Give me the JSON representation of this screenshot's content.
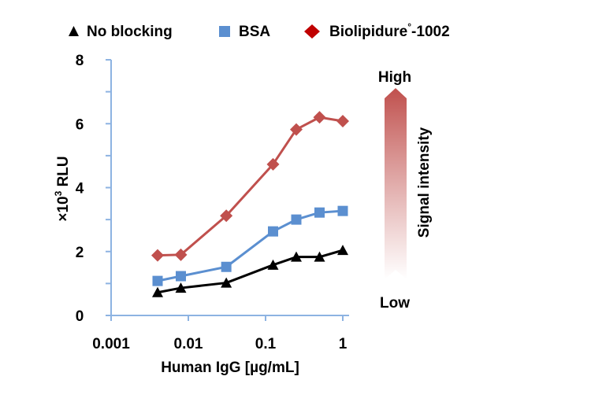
{
  "chart_data": {
    "type": "line",
    "xscale": "log",
    "xlim": [
      0.001,
      1
    ],
    "ylim": [
      0,
      8
    ],
    "x_ticks": [
      0.001,
      0.01,
      0.1,
      1
    ],
    "x_tick_labels": [
      "0.001",
      "0.01",
      "0.1",
      "1"
    ],
    "y_ticks": [
      0,
      2,
      4,
      6,
      8
    ],
    "y_tick_labels": [
      "0",
      "2",
      "4",
      "6",
      "8"
    ],
    "xlabel": "Human IgG [µg/mL]",
    "ylabel": "×10",
    "ylabel_sup": "3",
    "ylabel_tail": " RLU",
    "legend_position": "top",
    "grid": false,
    "series": [
      {
        "name": "No blocking",
        "color": "#000000",
        "marker": "triangle",
        "x": [
          0.004,
          0.008,
          0.031,
          0.125,
          0.25,
          0.5,
          1
        ],
        "y": [
          0.72,
          0.86,
          1.02,
          1.58,
          1.83,
          1.83,
          2.04
        ]
      },
      {
        "name": "BSA",
        "color": "#5b8fd0",
        "marker": "square",
        "x": [
          0.004,
          0.008,
          0.031,
          0.125,
          0.25,
          0.5,
          1
        ],
        "y": [
          1.08,
          1.23,
          1.52,
          2.63,
          3.0,
          3.22,
          3.27
        ]
      },
      {
        "name": "Biolipidure",
        "name_sup": "°",
        "name_tail": "-1002",
        "color": "#c0504d",
        "marker": "diamond",
        "x": [
          0.004,
          0.008,
          0.031,
          0.125,
          0.25,
          0.5,
          1
        ],
        "y": [
          1.88,
          1.9,
          3.12,
          4.73,
          5.82,
          6.2,
          6.08
        ]
      }
    ],
    "annotations": {
      "arrow_label": "Signal intensity",
      "high_label": "High",
      "low_label": "Low",
      "arrow_color": "#c0504d"
    }
  }
}
